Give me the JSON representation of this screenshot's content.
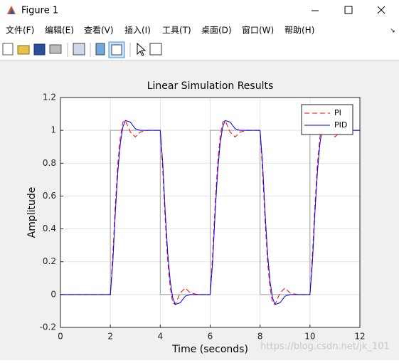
{
  "window": {
    "title": "Figure 1",
    "menu": [
      "文件(F)",
      "编辑(E)",
      "查看(V)",
      "插入(I)",
      "工具(T)",
      "桌面(D)",
      "窗口(W)",
      "帮助(H)"
    ],
    "watermark": "https://blog.csdn.net/jk_101"
  },
  "chart_data": {
    "type": "line",
    "title": "Linear Simulation Results",
    "xlabel": "Time (seconds)",
    "ylabel": "Amplitude",
    "xlim": [
      0,
      12
    ],
    "ylim": [
      -0.2,
      1.2
    ],
    "xticks": [
      0,
      2,
      4,
      6,
      8,
      10,
      12
    ],
    "yticks": [
      -0.2,
      0,
      0.2,
      0.4,
      0.6,
      0.8,
      1,
      1.2
    ],
    "grid": true,
    "legend": "upper right",
    "series": [
      {
        "color": "#a0a0a0",
        "linestyle": "solid",
        "x": [
          0,
          2,
          2,
          4,
          4,
          6,
          6,
          8,
          8,
          10,
          10,
          12
        ],
        "values": [
          0,
          0,
          1,
          1,
          0,
          0,
          1,
          1,
          0,
          0,
          1,
          1
        ]
      },
      {
        "name": "PI",
        "color": "#ff0000",
        "linestyle": "dashed",
        "x": [
          0,
          2,
          2.1,
          2.2,
          2.3,
          2.4,
          2.5,
          2.6,
          2.8,
          3,
          3.2,
          3.5,
          4,
          4.1,
          4.2,
          4.3,
          4.4,
          4.5,
          4.6,
          4.8,
          5,
          5.2,
          5.5,
          6,
          6.1,
          6.2,
          6.3,
          6.4,
          6.5,
          6.6,
          6.8,
          7,
          7.2,
          7.5,
          8,
          8.1,
          8.2,
          8.3,
          8.4,
          8.5,
          8.6,
          8.8,
          9,
          9.2,
          9.5,
          10,
          10.1,
          10.2,
          10.3,
          10.4,
          10.5,
          10.6,
          10.8,
          11,
          11.2,
          11.5,
          12
        ],
        "values": [
          0,
          0,
          0.25,
          0.55,
          0.8,
          0.96,
          1.05,
          1.06,
          0.99,
          0.96,
          0.99,
          1,
          1,
          0.75,
          0.45,
          0.2,
          0.04,
          -0.05,
          -0.06,
          0.01,
          0.04,
          0.01,
          0,
          0,
          0.25,
          0.55,
          0.8,
          0.96,
          1.05,
          1.06,
          0.99,
          0.96,
          0.99,
          1,
          1,
          0.75,
          0.45,
          0.2,
          0.04,
          -0.05,
          -0.06,
          0.01,
          0.04,
          0.01,
          0,
          0,
          0.25,
          0.55,
          0.8,
          0.96,
          1.05,
          1.06,
          0.99,
          0.96,
          0.99,
          1,
          1
        ]
      },
      {
        "name": "PID",
        "color": "#0000ff",
        "linestyle": "solid",
        "x": [
          0,
          2,
          2.1,
          2.2,
          2.3,
          2.4,
          2.5,
          2.6,
          2.8,
          3,
          3.2,
          3.5,
          4,
          4.1,
          4.2,
          4.3,
          4.4,
          4.5,
          4.6,
          4.8,
          5,
          5.2,
          5.5,
          6,
          6.1,
          6.2,
          6.3,
          6.4,
          6.5,
          6.6,
          6.8,
          7,
          7.2,
          7.5,
          8,
          8.1,
          8.2,
          8.3,
          8.4,
          8.5,
          8.6,
          8.8,
          9,
          9.2,
          9.5,
          10,
          10.1,
          10.2,
          10.3,
          10.4,
          10.5,
          10.6,
          10.8,
          11,
          11.2,
          11.5,
          12
        ],
        "values": [
          0,
          0,
          0.2,
          0.5,
          0.75,
          0.92,
          1.02,
          1.06,
          1.05,
          1.01,
          1,
          1,
          1,
          0.8,
          0.5,
          0.25,
          0.08,
          -0.02,
          -0.06,
          -0.05,
          -0.01,
          0,
          0,
          0,
          0.2,
          0.5,
          0.75,
          0.92,
          1.02,
          1.06,
          1.05,
          1.01,
          1,
          1,
          1,
          0.8,
          0.5,
          0.25,
          0.08,
          -0.02,
          -0.06,
          -0.05,
          -0.01,
          0,
          0,
          0,
          0.2,
          0.5,
          0.75,
          0.92,
          1.02,
          1.06,
          1.05,
          1.01,
          1,
          1,
          1
        ]
      }
    ]
  }
}
